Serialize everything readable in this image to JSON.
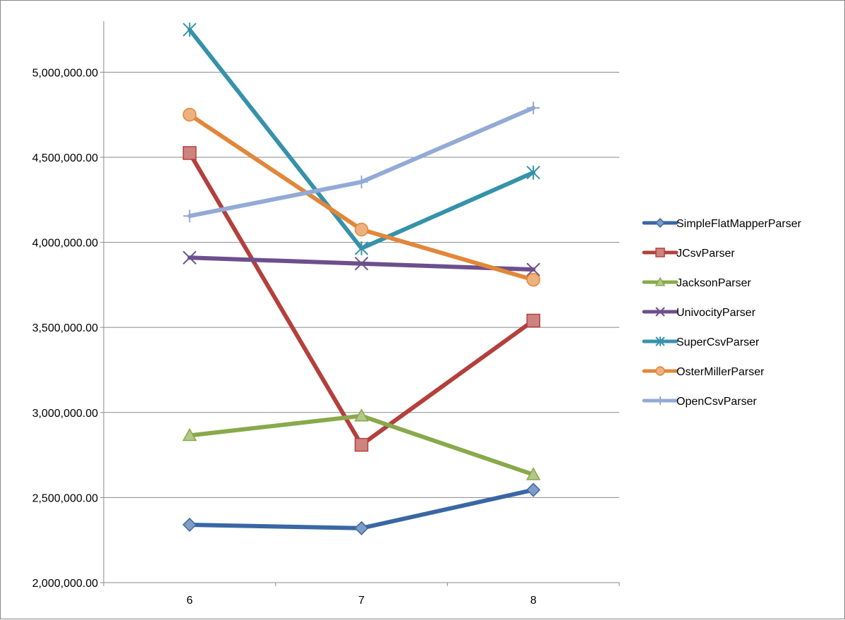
{
  "chart_data": {
    "type": "line",
    "title": "",
    "xlabel": "",
    "ylabel": "",
    "categories": [
      "6",
      "7",
      "8"
    ],
    "ylim": [
      2000000,
      5300000
    ],
    "yticks": [
      2000000,
      2500000,
      3000000,
      3500000,
      4000000,
      4500000,
      5000000
    ],
    "ytick_labels": [
      "2,000,000.00",
      "2,500,000.00",
      "3,000,000.00",
      "3,500,000.00",
      "4,000,000.00",
      "4,500,000.00",
      "5,000,000.00"
    ],
    "grid": true,
    "legend_position": "right",
    "series": [
      {
        "name": "SimpleFlatMapperParser",
        "color": "#3a67a4",
        "marker": "diamond",
        "values": [
          2340000,
          2320000,
          2545000
        ]
      },
      {
        "name": "JCsvParser",
        "color": "#b3403c",
        "marker": "square",
        "values": [
          4525000,
          2810000,
          3540000
        ]
      },
      {
        "name": "JacksonParser",
        "color": "#89a94a",
        "marker": "triangle",
        "values": [
          2865000,
          2980000,
          2635000
        ]
      },
      {
        "name": "UnivocityParser",
        "color": "#6d4f8c",
        "marker": "x",
        "values": [
          3910000,
          3875000,
          3840000
        ]
      },
      {
        "name": "SuperCsvParser",
        "color": "#3592a9",
        "marker": "star",
        "values": [
          5250000,
          3965000,
          4410000
        ]
      },
      {
        "name": "OsterMillerParser",
        "color": "#e2873a",
        "marker": "circle",
        "values": [
          4750000,
          4075000,
          3780000
        ]
      },
      {
        "name": "OpenCsvParser",
        "color": "#93aad6",
        "marker": "plus",
        "values": [
          4155000,
          4355000,
          4790000
        ]
      }
    ]
  }
}
